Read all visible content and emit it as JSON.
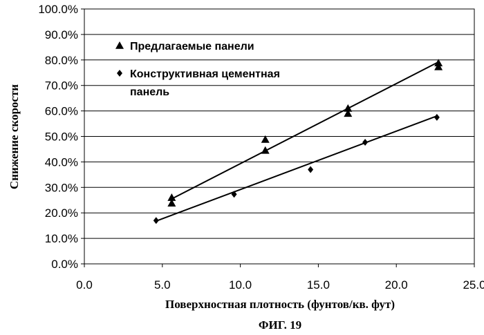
{
  "chart_data": {
    "type": "scatter",
    "xlabel": "Поверхностная плотность (фунтов/кв. фут)",
    "ylabel": "Снижение скорости",
    "caption": "ФИГ. 19",
    "xlim": [
      0,
      25
    ],
    "ylim": [
      0,
      100
    ],
    "x_ticks": [
      "0.0",
      "5.0",
      "10.0",
      "15.0",
      "20.0",
      "25.0"
    ],
    "y_ticks": [
      "0.0%",
      "10.0%",
      "20.0%",
      "30.0%",
      "40.0%",
      "50.0%",
      "60.0%",
      "70.0%",
      "80.0%",
      "90.0%",
      "100.0%"
    ],
    "grid": "horizontal",
    "legend_position": "top-left",
    "series": [
      {
        "name": "Предлагаемые панели",
        "marker": "triangle",
        "color": "#000000",
        "points": [
          [
            5.6,
            26.0
          ],
          [
            5.6,
            23.8
          ],
          [
            11.6,
            48.8
          ],
          [
            11.6,
            44.5
          ],
          [
            16.9,
            61.0
          ],
          [
            16.9,
            59.0
          ],
          [
            22.7,
            78.8
          ],
          [
            22.7,
            77.3
          ]
        ],
        "trendline": [
          [
            5.6,
            25.5
          ],
          [
            22.7,
            79.2
          ]
        ]
      },
      {
        "name": "Конструктивная цементная панель",
        "name_lines": [
          "Конструктивная цементная",
          "панель"
        ],
        "marker": "diamond",
        "color": "#000000",
        "points": [
          [
            4.6,
            17.0
          ],
          [
            9.6,
            27.3
          ],
          [
            14.5,
            37.0
          ],
          [
            18.0,
            47.7
          ],
          [
            22.6,
            57.5
          ]
        ],
        "trendline": [
          [
            4.6,
            16.8
          ],
          [
            22.6,
            58.0
          ]
        ]
      }
    ]
  }
}
